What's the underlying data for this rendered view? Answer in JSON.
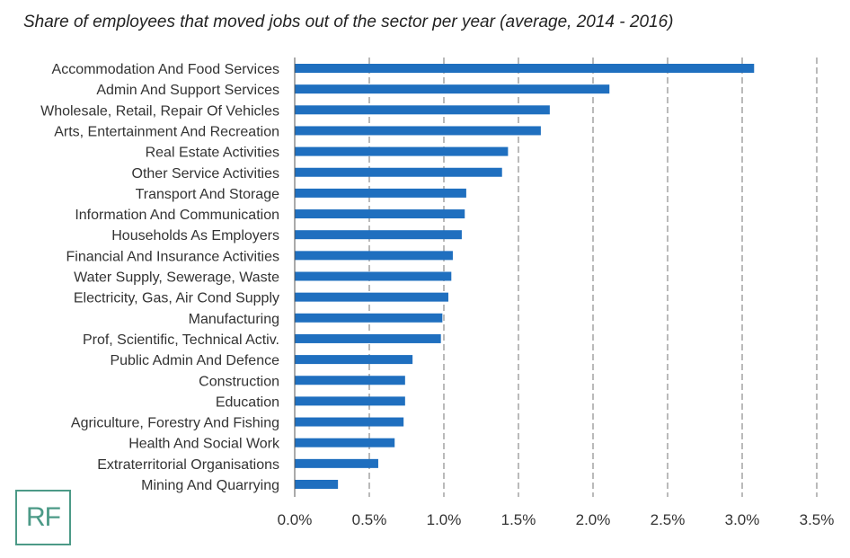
{
  "title": "Share of employees that moved jobs out of the sector per year (average, 2014 - 2016)",
  "logo_text": "RF",
  "colors": {
    "bar": "#1f6fbf",
    "grid": "#8c8c8c",
    "axis": "#555555",
    "text": "#333333"
  },
  "chart_data": {
    "type": "bar",
    "orientation": "horizontal",
    "title": "Share of employees that moved jobs out of the sector per year (average, 2014 - 2016)",
    "xlim": [
      0,
      0.035
    ],
    "xticks": [
      0,
      0.005,
      0.01,
      0.015,
      0.02,
      0.025,
      0.03,
      0.035
    ],
    "xtick_labels": [
      "0.0%",
      "0.5%",
      "1.0%",
      "1.5%",
      "2.0%",
      "2.5%",
      "3.0%",
      "3.5%"
    ],
    "grid": "vertical dashed",
    "categories": [
      "Accommodation And Food Services",
      "Admin And Support Services",
      "Wholesale, Retail, Repair Of Vehicles",
      "Arts, Entertainment And Recreation",
      "Real Estate Activities",
      "Other Service Activities",
      "Transport And Storage",
      "Information And Communication",
      "Households As Employers",
      "Financial And Insurance Activities",
      "Water Supply, Sewerage, Waste",
      "Electricity, Gas, Air Cond Supply",
      "Manufacturing",
      "Prof, Scientific, Technical Activ.",
      "Public Admin And Defence",
      "Construction",
      "Education",
      "Agriculture, Forestry And Fishing",
      "Health And Social Work",
      "Extraterritorial Organisations",
      "Mining And Quarrying"
    ],
    "values": [
      0.0308,
      0.0211,
      0.0171,
      0.0165,
      0.0143,
      0.0139,
      0.0115,
      0.0114,
      0.0112,
      0.0106,
      0.0105,
      0.0103,
      0.0099,
      0.0098,
      0.0079,
      0.0074,
      0.0074,
      0.0073,
      0.0067,
      0.0056,
      0.0029
    ]
  }
}
